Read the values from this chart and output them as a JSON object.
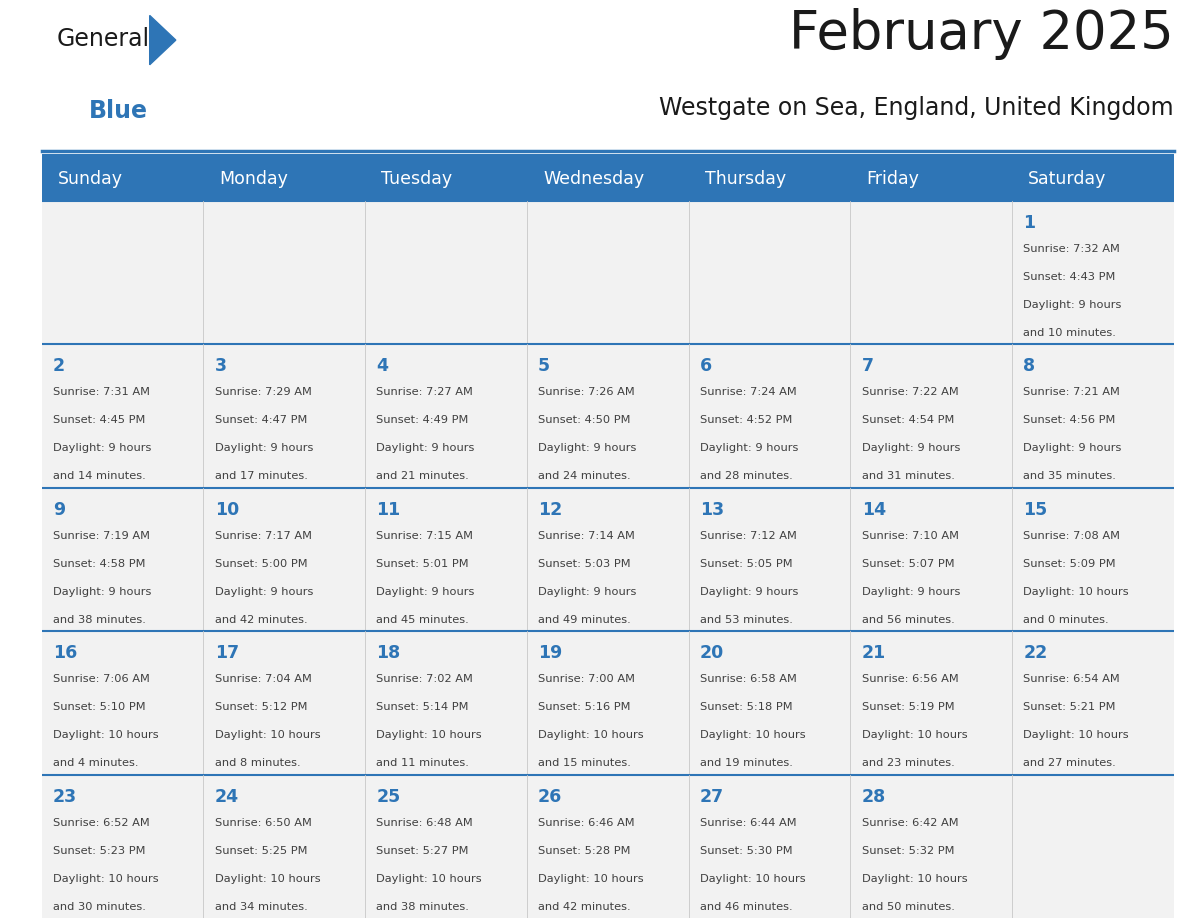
{
  "title": "February 2025",
  "subtitle": "Westgate on Sea, England, United Kingdom",
  "header_bg": "#2E75B6",
  "header_text": "#FFFFFF",
  "cell_bg": "#F2F2F2",
  "day_number_color": "#2E75B6",
  "text_color": "#404040",
  "line_color": "#2E75B6",
  "days_of_week": [
    "Sunday",
    "Monday",
    "Tuesday",
    "Wednesday",
    "Thursday",
    "Friday",
    "Saturday"
  ],
  "calendar": [
    [
      null,
      null,
      null,
      null,
      null,
      null,
      {
        "day": "1",
        "sunrise": "7:32 AM",
        "sunset": "4:43 PM",
        "daylight": "9 hours\nand 10 minutes."
      }
    ],
    [
      {
        "day": "2",
        "sunrise": "7:31 AM",
        "sunset": "4:45 PM",
        "daylight": "9 hours\nand 14 minutes."
      },
      {
        "day": "3",
        "sunrise": "7:29 AM",
        "sunset": "4:47 PM",
        "daylight": "9 hours\nand 17 minutes."
      },
      {
        "day": "4",
        "sunrise": "7:27 AM",
        "sunset": "4:49 PM",
        "daylight": "9 hours\nand 21 minutes."
      },
      {
        "day": "5",
        "sunrise": "7:26 AM",
        "sunset": "4:50 PM",
        "daylight": "9 hours\nand 24 minutes."
      },
      {
        "day": "6",
        "sunrise": "7:24 AM",
        "sunset": "4:52 PM",
        "daylight": "9 hours\nand 28 minutes."
      },
      {
        "day": "7",
        "sunrise": "7:22 AM",
        "sunset": "4:54 PM",
        "daylight": "9 hours\nand 31 minutes."
      },
      {
        "day": "8",
        "sunrise": "7:21 AM",
        "sunset": "4:56 PM",
        "daylight": "9 hours\nand 35 minutes."
      }
    ],
    [
      {
        "day": "9",
        "sunrise": "7:19 AM",
        "sunset": "4:58 PM",
        "daylight": "9 hours\nand 38 minutes."
      },
      {
        "day": "10",
        "sunrise": "7:17 AM",
        "sunset": "5:00 PM",
        "daylight": "9 hours\nand 42 minutes."
      },
      {
        "day": "11",
        "sunrise": "7:15 AM",
        "sunset": "5:01 PM",
        "daylight": "9 hours\nand 45 minutes."
      },
      {
        "day": "12",
        "sunrise": "7:14 AM",
        "sunset": "5:03 PM",
        "daylight": "9 hours\nand 49 minutes."
      },
      {
        "day": "13",
        "sunrise": "7:12 AM",
        "sunset": "5:05 PM",
        "daylight": "9 hours\nand 53 minutes."
      },
      {
        "day": "14",
        "sunrise": "7:10 AM",
        "sunset": "5:07 PM",
        "daylight": "9 hours\nand 56 minutes."
      },
      {
        "day": "15",
        "sunrise": "7:08 AM",
        "sunset": "5:09 PM",
        "daylight": "10 hours\nand 0 minutes."
      }
    ],
    [
      {
        "day": "16",
        "sunrise": "7:06 AM",
        "sunset": "5:10 PM",
        "daylight": "10 hours\nand 4 minutes."
      },
      {
        "day": "17",
        "sunrise": "7:04 AM",
        "sunset": "5:12 PM",
        "daylight": "10 hours\nand 8 minutes."
      },
      {
        "day": "18",
        "sunrise": "7:02 AM",
        "sunset": "5:14 PM",
        "daylight": "10 hours\nand 11 minutes."
      },
      {
        "day": "19",
        "sunrise": "7:00 AM",
        "sunset": "5:16 PM",
        "daylight": "10 hours\nand 15 minutes."
      },
      {
        "day": "20",
        "sunrise": "6:58 AM",
        "sunset": "5:18 PM",
        "daylight": "10 hours\nand 19 minutes."
      },
      {
        "day": "21",
        "sunrise": "6:56 AM",
        "sunset": "5:19 PM",
        "daylight": "10 hours\nand 23 minutes."
      },
      {
        "day": "22",
        "sunrise": "6:54 AM",
        "sunset": "5:21 PM",
        "daylight": "10 hours\nand 27 minutes."
      }
    ],
    [
      {
        "day": "23",
        "sunrise": "6:52 AM",
        "sunset": "5:23 PM",
        "daylight": "10 hours\nand 30 minutes."
      },
      {
        "day": "24",
        "sunrise": "6:50 AM",
        "sunset": "5:25 PM",
        "daylight": "10 hours\nand 34 minutes."
      },
      {
        "day": "25",
        "sunrise": "6:48 AM",
        "sunset": "5:27 PM",
        "daylight": "10 hours\nand 38 minutes."
      },
      {
        "day": "26",
        "sunrise": "6:46 AM",
        "sunset": "5:28 PM",
        "daylight": "10 hours\nand 42 minutes."
      },
      {
        "day": "27",
        "sunrise": "6:44 AM",
        "sunset": "5:30 PM",
        "daylight": "10 hours\nand 46 minutes."
      },
      {
        "day": "28",
        "sunrise": "6:42 AM",
        "sunset": "5:32 PM",
        "daylight": "10 hours\nand 50 minutes."
      },
      null
    ]
  ]
}
